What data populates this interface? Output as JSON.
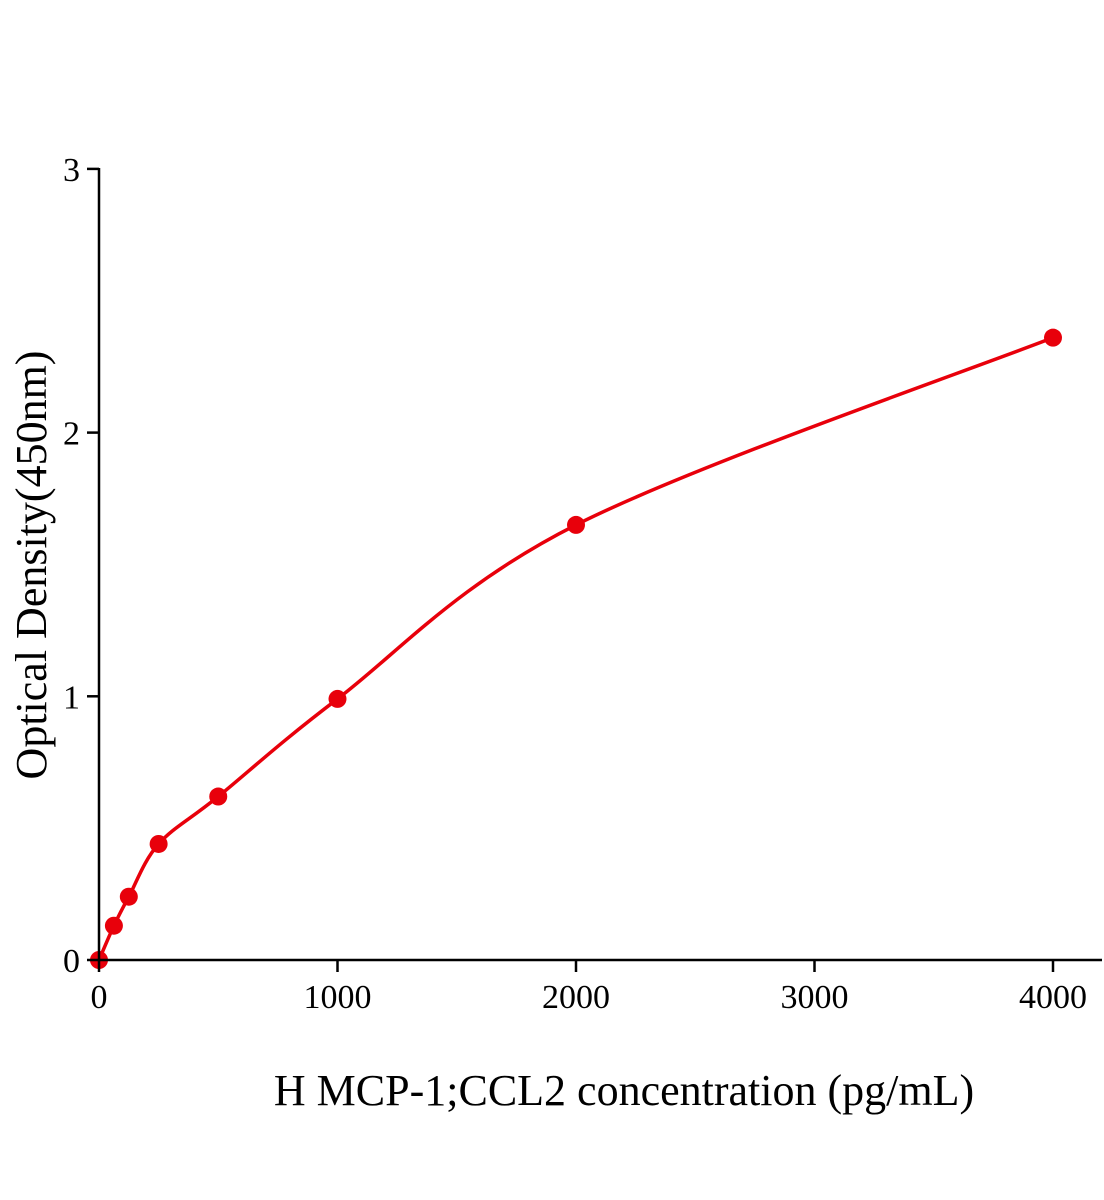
{
  "chart_data": {
    "type": "scatter",
    "title": "",
    "xlabel": "H MCP-1;CCL2 concentration (pg/mL)",
    "ylabel": "Optical Density(450nm)",
    "xlim": [
      0,
      4200
    ],
    "ylim": [
      0,
      3
    ],
    "xticks": [
      0,
      1000,
      2000,
      3000,
      4000
    ],
    "yticks": [
      0,
      1,
      2,
      3
    ],
    "xtick_labels": [
      "0",
      "1000",
      "2000",
      "3000",
      "4000"
    ],
    "ytick_labels": [
      "0",
      "1",
      "2",
      "3"
    ],
    "grid": false,
    "color": "#e8000b",
    "fit_curve": true,
    "x": [
      0,
      62.5,
      125,
      250,
      500,
      1000,
      2000,
      4000
    ],
    "y": [
      0.0,
      0.13,
      0.24,
      0.44,
      0.62,
      0.99,
      1.65,
      2.36
    ]
  }
}
